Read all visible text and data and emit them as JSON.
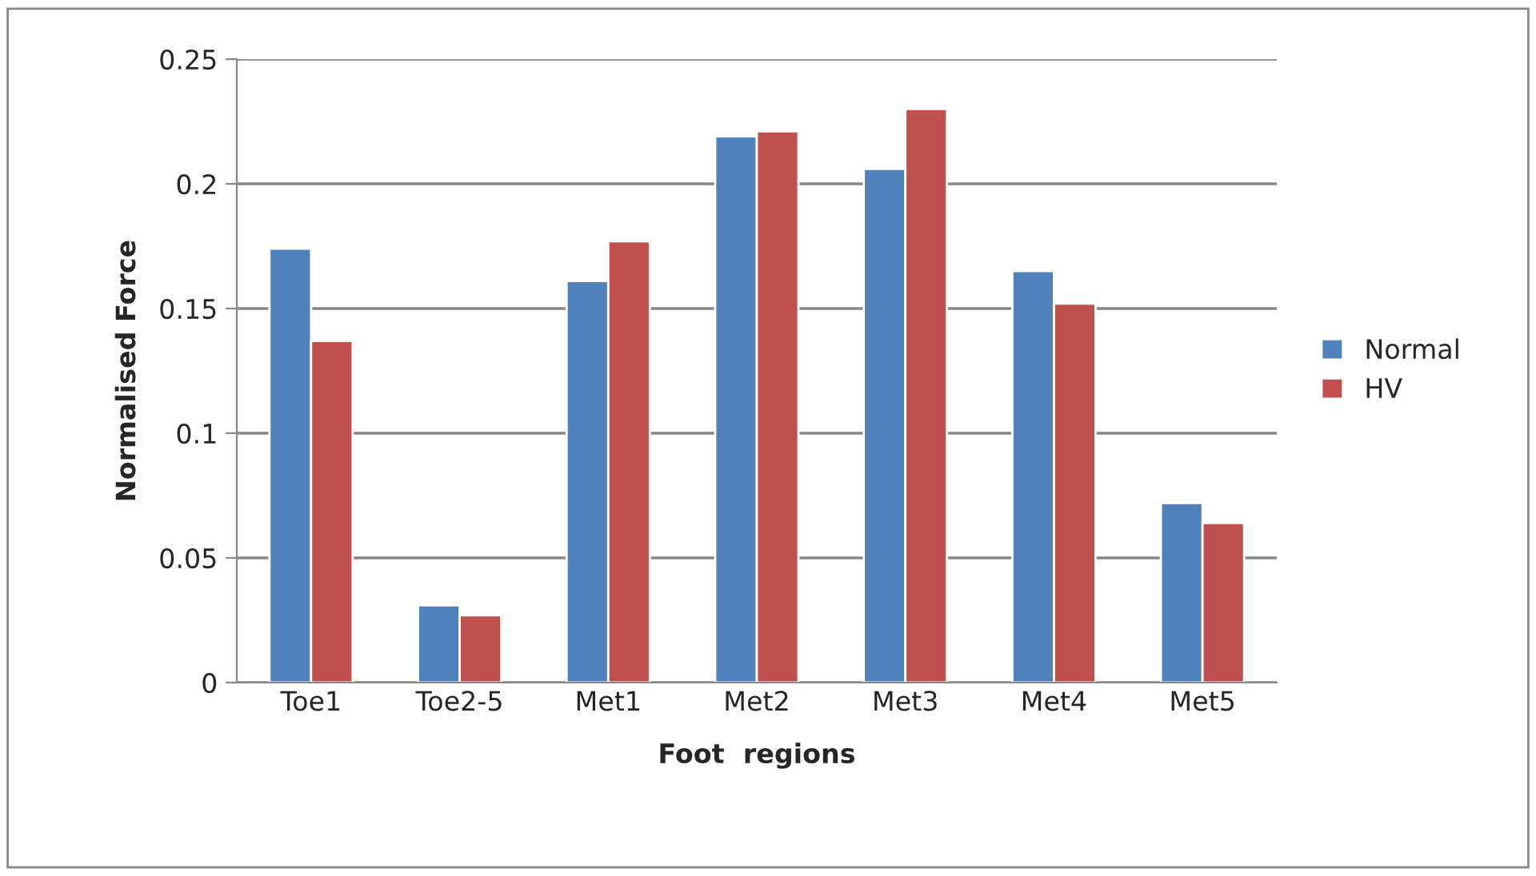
{
  "chart_data": {
    "type": "bar",
    "xlabel": "Foot  regions",
    "ylabel": "Normalised Force",
    "categories": [
      "Toe1",
      "Toe2-5",
      "Met1",
      "Met2",
      "Met3",
      "Met4",
      "Met5"
    ],
    "series": [
      {
        "name": "Normal",
        "color": "#4f81bd",
        "values": [
          0.174,
          0.031,
          0.161,
          0.219,
          0.206,
          0.165,
          0.072
        ]
      },
      {
        "name": "HV",
        "color": "#c0504d",
        "values": [
          0.137,
          0.027,
          0.177,
          0.221,
          0.23,
          0.152,
          0.064
        ]
      }
    ],
    "ylim": [
      0,
      0.25
    ],
    "yticks": [
      {
        "value": 0,
        "label": "0"
      },
      0.05,
      0.1,
      0.15,
      0.2,
      0.25
    ],
    "grid": "y",
    "legend": "right"
  }
}
